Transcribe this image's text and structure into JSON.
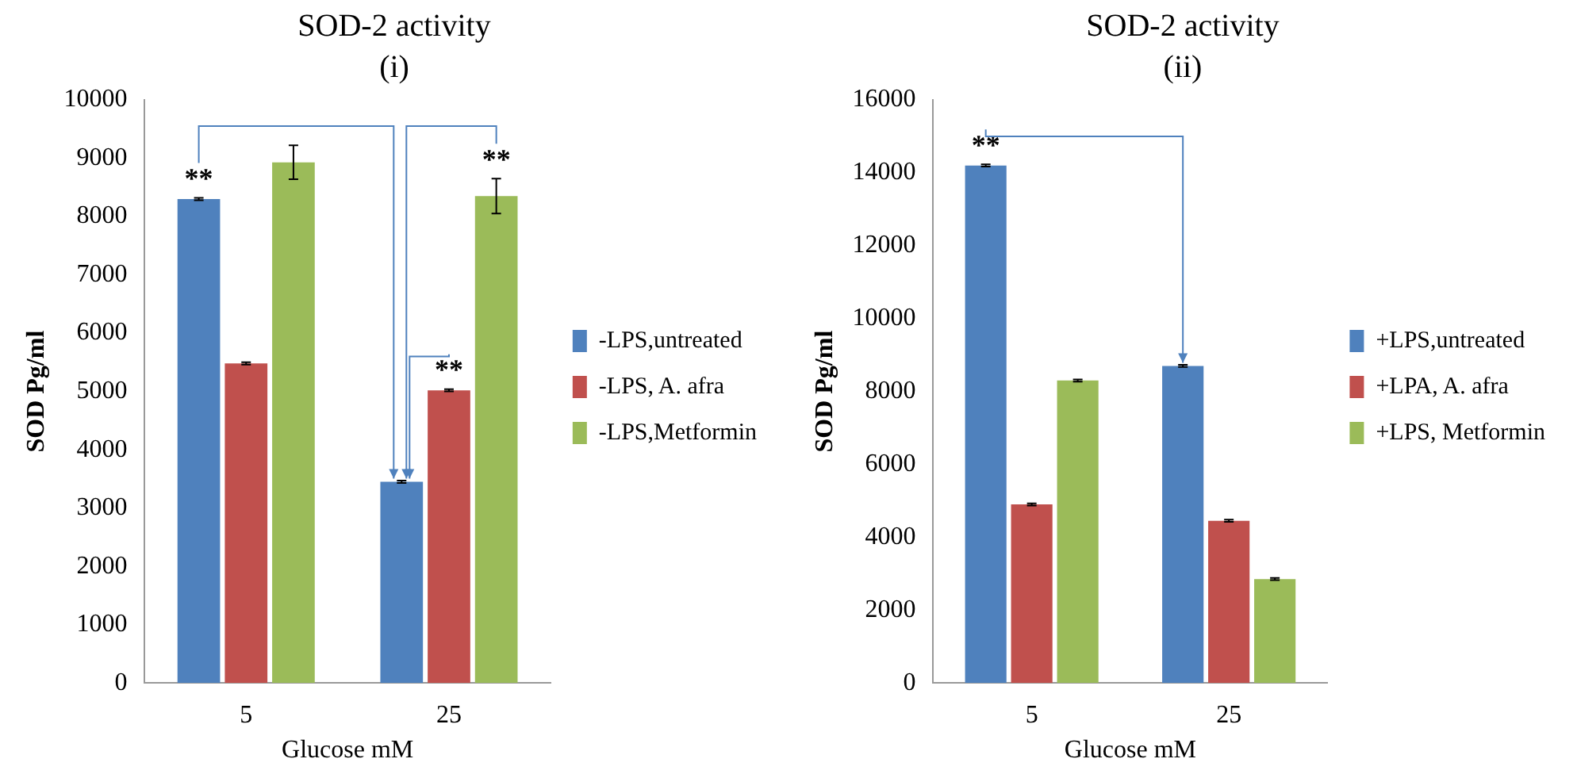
{
  "chart_data": [
    {
      "type": "bar",
      "title": "SOD-2 activity",
      "subtitle": "(i)",
      "xlabel": "Glucose mM",
      "ylabel": "SOD Pg/ml",
      "categories": [
        "5",
        "25"
      ],
      "series": [
        {
          "name": "-LPS,untreated",
          "color": "#4f81bd",
          "values": [
            8300,
            3450
          ],
          "errors": [
            20,
            20
          ]
        },
        {
          "name": "-LPS, A. afra",
          "color": "#c0504d",
          "values": [
            5480,
            5020
          ],
          "errors": [
            20,
            20
          ]
        },
        {
          "name": "-LPS,Metformin",
          "color": "#9bbb59",
          "values": [
            8930,
            8350
          ],
          "errors": [
            290,
            300
          ]
        }
      ],
      "ylim": [
        0,
        10000
      ],
      "yticks": [
        0,
        1000,
        2000,
        3000,
        4000,
        5000,
        6000,
        7000,
        8000,
        9000,
        10000
      ],
      "grid": false,
      "legend": "right",
      "annotations": [
        "**",
        {
          "text": "**",
          "x": "25",
          "y": 5020
        },
        "**"
      ]
    },
    {
      "type": "bar",
      "title": "SOD-2 activity",
      "subtitle": "(ii)",
      "xlabel": "Glucose mM",
      "ylabel": "SOD Pg/ml",
      "categories": [
        "5",
        "25"
      ],
      "series": [
        {
          "name": "+LPS,untreated",
          "color": "#4f81bd",
          "values": [
            14200,
            8700
          ],
          "errors": [
            30,
            30
          ]
        },
        {
          "name": "+LPA, A. afra",
          "color": "#c0504d",
          "values": [
            4900,
            4450
          ],
          "errors": [
            30,
            30
          ]
        },
        {
          "name": "+LPS, Metformin",
          "color": "#9bbb59",
          "values": [
            8300,
            2850
          ],
          "errors": [
            30,
            30
          ]
        }
      ],
      "ylim": [
        0,
        16000
      ],
      "yticks": [
        0,
        2000,
        4000,
        6000,
        8000,
        10000,
        12000,
        14000,
        16000
      ],
      "grid": false,
      "legend": "right",
      "annotations": [
        "**"
      ]
    }
  ]
}
